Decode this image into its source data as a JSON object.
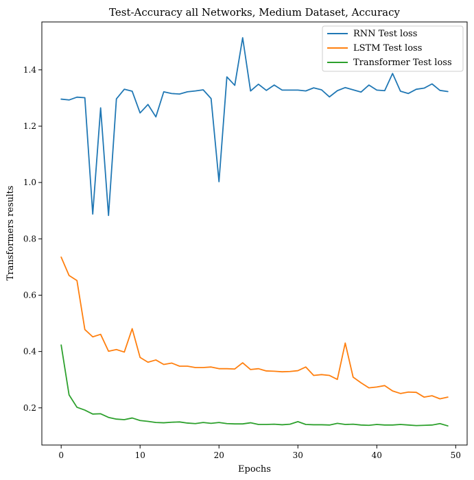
{
  "chart_data": {
    "type": "line",
    "title": "Test-Accuracy all Networks, Medium Dataset, Accuracy",
    "xlabel": "Epochs",
    "ylabel": "Transformers results",
    "xlim": [
      -2.45,
      51.45
    ],
    "ylim": [
      0.068,
      1.57
    ],
    "xticks": [
      0,
      10,
      20,
      30,
      40,
      50
    ],
    "yticks": [
      0.2,
      0.4,
      0.6,
      0.8,
      1.0,
      1.2,
      1.4
    ],
    "ytick_labels": [
      "0.2",
      "0.4",
      "0.6",
      "0.8",
      "1.0",
      "1.2",
      "1.4"
    ],
    "grid": false,
    "legend_position": "top-right",
    "x": [
      0,
      1,
      2,
      3,
      4,
      5,
      6,
      7,
      8,
      9,
      10,
      11,
      12,
      13,
      14,
      15,
      16,
      17,
      18,
      19,
      20,
      21,
      22,
      23,
      24,
      25,
      26,
      27,
      28,
      29,
      30,
      31,
      32,
      33,
      34,
      35,
      36,
      37,
      38,
      39,
      40,
      41,
      42,
      43,
      44,
      45,
      46,
      47,
      48,
      49
    ],
    "series": [
      {
        "name": "RNN Test loss",
        "color": "#1f77b4",
        "values": [
          1.296,
          1.293,
          1.303,
          1.301,
          0.888,
          1.265,
          0.883,
          1.297,
          1.331,
          1.324,
          1.247,
          1.277,
          1.233,
          1.322,
          1.316,
          1.314,
          1.322,
          1.325,
          1.329,
          1.298,
          1.003,
          1.375,
          1.345,
          1.514,
          1.325,
          1.349,
          1.327,
          1.346,
          1.328,
          1.328,
          1.328,
          1.325,
          1.336,
          1.329,
          1.304,
          1.326,
          1.337,
          1.329,
          1.321,
          1.346,
          1.328,
          1.326,
          1.387,
          1.324,
          1.316,
          1.331,
          1.335,
          1.35,
          1.327,
          1.323
        ]
      },
      {
        "name": "LSTM Test loss",
        "color": "#ff7f0e",
        "values": [
          0.735,
          0.67,
          0.652,
          0.478,
          0.452,
          0.461,
          0.401,
          0.407,
          0.398,
          0.481,
          0.379,
          0.362,
          0.37,
          0.354,
          0.359,
          0.348,
          0.348,
          0.343,
          0.343,
          0.345,
          0.339,
          0.339,
          0.338,
          0.36,
          0.336,
          0.339,
          0.331,
          0.33,
          0.328,
          0.329,
          0.332,
          0.345,
          0.315,
          0.318,
          0.315,
          0.301,
          0.43,
          0.309,
          0.289,
          0.271,
          0.274,
          0.279,
          0.26,
          0.251,
          0.256,
          0.255,
          0.238,
          0.243,
          0.232,
          0.238
        ]
      },
      {
        "name": "Transformer Test loss",
        "color": "#2ca02c",
        "values": [
          0.423,
          0.246,
          0.202,
          0.192,
          0.178,
          0.179,
          0.166,
          0.16,
          0.158,
          0.164,
          0.155,
          0.152,
          0.148,
          0.147,
          0.149,
          0.15,
          0.146,
          0.144,
          0.148,
          0.145,
          0.148,
          0.144,
          0.143,
          0.143,
          0.147,
          0.141,
          0.141,
          0.142,
          0.14,
          0.142,
          0.151,
          0.141,
          0.14,
          0.14,
          0.139,
          0.145,
          0.141,
          0.142,
          0.139,
          0.138,
          0.141,
          0.139,
          0.139,
          0.141,
          0.139,
          0.137,
          0.138,
          0.139,
          0.144,
          0.136
        ]
      }
    ]
  }
}
